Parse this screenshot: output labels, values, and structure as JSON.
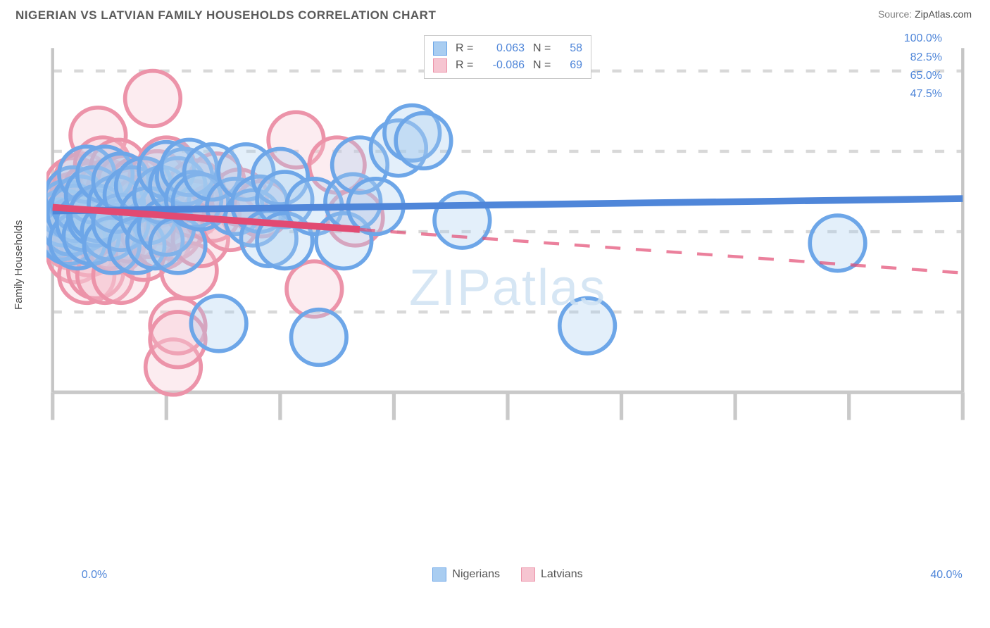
{
  "title": "NIGERIAN VS LATVIAN FAMILY HOUSEHOLDS CORRELATION CHART",
  "source_prefix": "Source: ",
  "source_name": "ZipAtlas.com",
  "ylabel": "Family Households",
  "watermark": "ZIPatlas",
  "chart": {
    "type": "scatter-with-trendlines",
    "background_color": "#ffffff",
    "grid_color": "#d8d8d8",
    "grid_dash": "3,4",
    "axis_color": "#c9c9c9",
    "plot_border_color": "#c5c5c5",
    "tick_color": "#c9c9c9",
    "marker_radius": 9,
    "marker_stroke_width": 1.3,
    "marker_fill_opacity": 0.32,
    "xlim": [
      0,
      40
    ],
    "ylim": [
      30,
      105
    ],
    "xtick_positions": [
      0,
      5,
      10,
      15,
      20,
      25,
      30,
      35,
      40
    ],
    "xtick_labels": {
      "0": "0.0%",
      "40": "40.0%"
    },
    "ytick_positions": [
      47.5,
      65.0,
      82.5,
      100.0
    ],
    "ytick_labels": [
      "47.5%",
      "65.0%",
      "82.5%",
      "100.0%"
    ],
    "axis_label_color": "#4f86d9",
    "axis_label_fontsize": 16,
    "watermark_color": "#cfe2f3",
    "watermark_fontsize": 72,
    "series": [
      {
        "name": "Nigerians",
        "color_stroke": "#6da6e8",
        "color_fill": "#a9cdf1",
        "r_value": "0.063",
        "n_value": "58",
        "trend": {
          "x1": 0,
          "y1": 69.5,
          "x2": 40,
          "y2": 72.2,
          "data_x_max": 40,
          "color": "#4f86d9",
          "width": 2.2
        },
        "points": [
          [
            0.3,
            66
          ],
          [
            0.4,
            65
          ],
          [
            0.5,
            68
          ],
          [
            0.6,
            70
          ],
          [
            0.7,
            64
          ],
          [
            0.8,
            66
          ],
          [
            0.9,
            73
          ],
          [
            1.0,
            69
          ],
          [
            1.1,
            63
          ],
          [
            1.2,
            71
          ],
          [
            1.4,
            67
          ],
          [
            1.5,
            77.5
          ],
          [
            1.7,
            64
          ],
          [
            1.8,
            73
          ],
          [
            1.9,
            68
          ],
          [
            2.0,
            69
          ],
          [
            2.3,
            77.5
          ],
          [
            2.5,
            65
          ],
          [
            2.6,
            62
          ],
          [
            2.8,
            71
          ],
          [
            3.0,
            67
          ],
          [
            3.0,
            76
          ],
          [
            3.5,
            73
          ],
          [
            3.7,
            62
          ],
          [
            4.0,
            75
          ],
          [
            4.2,
            68.5
          ],
          [
            4.5,
            63
          ],
          [
            4.8,
            73
          ],
          [
            5.0,
            78.5
          ],
          [
            5.0,
            66
          ],
          [
            5.5,
            75
          ],
          [
            5.5,
            62
          ],
          [
            5.8,
            77
          ],
          [
            6.0,
            79
          ],
          [
            6.2,
            72
          ],
          [
            6.5,
            71.5
          ],
          [
            7.0,
            78
          ],
          [
            7.3,
            45
          ],
          [
            8.0,
            70.5
          ],
          [
            8.5,
            78
          ],
          [
            8.8,
            68
          ],
          [
            9.1,
            71
          ],
          [
            9.5,
            63.5
          ],
          [
            10.0,
            77
          ],
          [
            10.2,
            72
          ],
          [
            10.2,
            63
          ],
          [
            11.5,
            70.5
          ],
          [
            11.7,
            42
          ],
          [
            12.8,
            63
          ],
          [
            13.2,
            71.5
          ],
          [
            13.5,
            79.5
          ],
          [
            14.2,
            70.5
          ],
          [
            15.2,
            83.2
          ],
          [
            15.8,
            86.5
          ],
          [
            16.3,
            84.8
          ],
          [
            18.0,
            67.5
          ],
          [
            23.5,
            44.5
          ],
          [
            34.5,
            62.5
          ]
        ]
      },
      {
        "name": "Latvians",
        "color_stroke": "#ec93a9",
        "color_fill": "#f6c5d1",
        "r_value": "-0.086",
        "n_value": "69",
        "trend": {
          "x1": 0,
          "y1": 70.3,
          "x2": 40,
          "y2": 56.0,
          "data_x_max": 13.5,
          "color": "#e24a72",
          "width": 2.2
        },
        "points": [
          [
            0.3,
            68
          ],
          [
            0.4,
            65.5
          ],
          [
            0.5,
            70.5
          ],
          [
            0.5,
            64
          ],
          [
            0.6,
            67
          ],
          [
            0.7,
            66
          ],
          [
            0.8,
            71.5
          ],
          [
            0.8,
            63
          ],
          [
            0.9,
            75
          ],
          [
            1.0,
            68.5
          ],
          [
            1.0,
            60
          ],
          [
            1.1,
            72
          ],
          [
            1.2,
            66.5
          ],
          [
            1.3,
            76
          ],
          [
            1.3,
            63.5
          ],
          [
            1.4,
            70
          ],
          [
            1.5,
            55.5
          ],
          [
            1.5,
            68
          ],
          [
            1.6,
            61.5
          ],
          [
            1.7,
            74
          ],
          [
            1.8,
            67.5
          ],
          [
            1.9,
            71
          ],
          [
            1.9,
            56.5
          ],
          [
            2.0,
            86
          ],
          [
            2.0,
            65
          ],
          [
            2.1,
            72.5
          ],
          [
            2.2,
            79.5
          ],
          [
            2.3,
            67
          ],
          [
            2.3,
            55.5
          ],
          [
            2.4,
            74.5
          ],
          [
            2.5,
            63
          ],
          [
            2.6,
            70.5
          ],
          [
            2.7,
            73.5
          ],
          [
            2.8,
            62
          ],
          [
            2.9,
            79
          ],
          [
            3.0,
            68
          ],
          [
            3.0,
            55.5
          ],
          [
            3.2,
            75.5
          ],
          [
            3.4,
            64.5
          ],
          [
            3.5,
            72.5
          ],
          [
            3.5,
            67
          ],
          [
            3.7,
            75
          ],
          [
            3.9,
            71
          ],
          [
            4.0,
            60.5
          ],
          [
            4.2,
            65.5
          ],
          [
            4.4,
            94
          ],
          [
            4.5,
            72
          ],
          [
            4.6,
            76.5
          ],
          [
            4.7,
            68.5
          ],
          [
            4.8,
            63
          ],
          [
            5.0,
            79.5
          ],
          [
            5.3,
            65
          ],
          [
            5.3,
            35.5
          ],
          [
            5.5,
            44.5
          ],
          [
            5.5,
            41.5
          ],
          [
            5.7,
            67.5
          ],
          [
            6.0,
            56.5
          ],
          [
            6.2,
            70
          ],
          [
            6.3,
            74.5
          ],
          [
            6.5,
            63.5
          ],
          [
            7.0,
            69
          ],
          [
            7.2,
            76
          ],
          [
            7.8,
            67
          ],
          [
            8.2,
            72.5
          ],
          [
            9.2,
            70
          ],
          [
            10.7,
            85
          ],
          [
            11.5,
            52.5
          ],
          [
            12.5,
            79.5
          ],
          [
            13.3,
            68
          ]
        ]
      }
    ],
    "legend": {
      "font_color": "#555555",
      "value_color": "#4f86d9",
      "border_color": "#c9c9c9"
    }
  }
}
